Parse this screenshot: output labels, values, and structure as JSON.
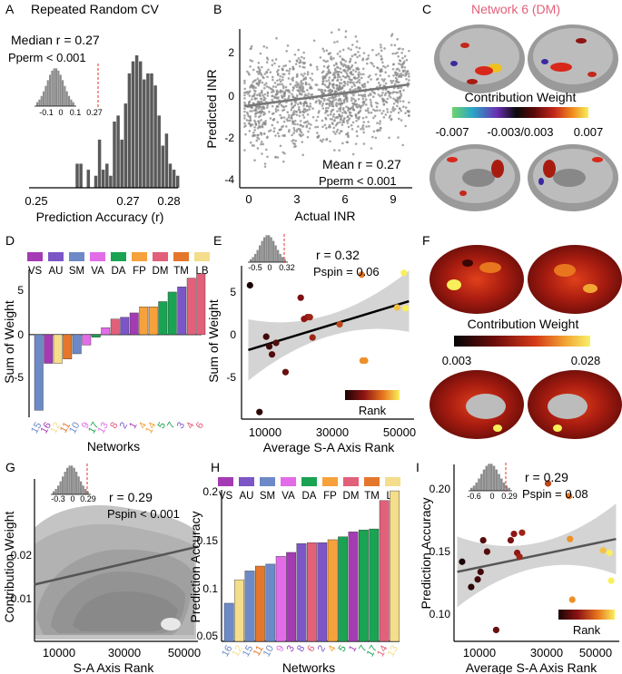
{
  "panels": {
    "A": {
      "letter": "A",
      "title": "Repeated Random CV",
      "median_label": "Median r = 0.27",
      "pperm_label": "Pperm < 0.001",
      "xlabel": "Prediction Accuracy (r)",
      "xticks": [
        "0.25",
        "0.27",
        "0.28"
      ],
      "inset_xticks": [
        "-0.1",
        "0",
        "0.1",
        "0.27"
      ]
    },
    "B": {
      "letter": "B",
      "xlabel": "Actual INR",
      "ylabel": "Predicted INR",
      "xticks": [
        "0",
        "3",
        "6",
        "9"
      ],
      "yticks": [
        "2",
        "0",
        "-2",
        "-4"
      ],
      "mean_label": "Mean r = 0.27",
      "pperm_label": "Pperm < 0.001"
    },
    "C": {
      "letter": "C",
      "title": "Network 6 (DM)",
      "cbar_title": "Contribution Weight",
      "cbar_ticks": [
        "-0.007",
        "-0.003/0.003",
        "0.007"
      ]
    },
    "D": {
      "letter": "D",
      "ylabel": "Sum of Weight",
      "xlabel": "Networks",
      "yticks": [
        "5",
        "0",
        "-5"
      ],
      "legend": [
        "VS",
        "AU",
        "SM",
        "VA",
        "DA",
        "FP",
        "DM",
        "TM",
        "LB"
      ]
    },
    "E": {
      "letter": "E",
      "ylabel": "Sum of Weight",
      "xlabel": "Average S-A Axis Rank",
      "yticks": [
        "5",
        "0",
        "-5"
      ],
      "xticks": [
        "10000",
        "30000",
        "50000"
      ],
      "r_label": "r = 0.32",
      "p_label": "Pspin = 0.06",
      "inset_xticks": [
        "-0.5",
        "0",
        "0.32"
      ],
      "rank_label": "Rank"
    },
    "F": {
      "letter": "F",
      "cbar_title": "Contribution Weight",
      "cbar_ticks": [
        "0.003",
        "0.028"
      ]
    },
    "G": {
      "letter": "G",
      "ylabel": "Contribution Weight",
      "xlabel": "S-A Axis Rank",
      "yticks": [
        "0.02",
        "0.01"
      ],
      "xticks": [
        "10000",
        "30000",
        "50000"
      ],
      "r_label": "r = 0.29",
      "p_label": "Pspin < 0.001",
      "inset_xticks": [
        "-0.3",
        "0",
        "0.29"
      ]
    },
    "H": {
      "letter": "H",
      "ylabel": "Prediction Accuracy",
      "xlabel": "Networks",
      "yticks": [
        "0.2",
        "0.15",
        "0.1",
        "0.05"
      ],
      "legend": [
        "VS",
        "AU",
        "SM",
        "VA",
        "DA",
        "FP",
        "DM",
        "TM",
        "LB"
      ]
    },
    "I": {
      "letter": "I",
      "ylabel": "Prediction Accuracy",
      "xlabel": "Average S-A Axis Rank",
      "yticks": [
        "0.20",
        "0.15",
        "0.10"
      ],
      "xticks": [
        "10000",
        "30000",
        "50000"
      ],
      "r_label": "r = 0.29",
      "p_label": "Pspin = 0.08",
      "inset_xticks": [
        "-0.6",
        "0",
        "0.29"
      ],
      "rank_label": "Rank"
    }
  },
  "network_colors": {
    "VS": "#a43bb3",
    "AU": "#7c56c6",
    "SM": "#6d8ac7",
    "VA": "#e26ce8",
    "DA": "#1aa352",
    "FP": "#f6a13b",
    "DM": "#e2607a",
    "TM": "#e4772c",
    "LB": "#f4dd8b"
  },
  "chart_data": [
    {
      "panel": "A",
      "type": "bar",
      "title": "Repeated Random CV",
      "xlabel": "Prediction Accuracy (r)",
      "xlim": [
        0.245,
        0.285
      ],
      "bin_start": 0.2575,
      "bin_width": 0.001,
      "values": [
        4,
        4,
        0,
        3,
        0,
        2,
        8,
        3,
        4,
        2,
        11,
        12,
        8,
        14,
        19,
        21,
        22,
        21,
        18,
        19,
        19,
        17,
        12,
        7,
        9,
        4,
        3,
        2
      ],
      "annotations": [
        "Median r = 0.27",
        "Pperm < 0.001"
      ]
    },
    {
      "panel": "B",
      "type": "scatter",
      "xlabel": "Actual INR",
      "ylabel": "Predicted INR",
      "xlim": [
        -0.3,
        10.2
      ],
      "ylim": [
        -4.3,
        3.0
      ],
      "fit_line": {
        "x": [
          0,
          10
        ],
        "y": [
          -0.55,
          0.45
        ]
      },
      "annotations": [
        "Mean r = 0.27",
        "Pperm < 0.001"
      ]
    },
    {
      "panel": "D",
      "type": "bar",
      "xlabel": "Networks",
      "ylabel": "Sum of Weight",
      "ylim": [
        -9.5,
        7.5
      ],
      "categories": [
        "15",
        "16",
        "12",
        "11",
        "10",
        "9",
        "17",
        "13",
        "8",
        "2",
        "1",
        "4",
        "14",
        "5",
        "7",
        "3",
        "4",
        "6"
      ],
      "networks": [
        "SM",
        "VS",
        "LB",
        "TM",
        "SM",
        "VA",
        "DA",
        "VA",
        "DM",
        "AU",
        "VS",
        "FP",
        "FP",
        "DA",
        "DA",
        "AU",
        "DM",
        "DM"
      ],
      "values": [
        -8.7,
        -3.3,
        -3.3,
        -2.8,
        -2.2,
        -1.2,
        -0.3,
        0.8,
        1.8,
        2.0,
        2.5,
        3.2,
        3.2,
        3.8,
        4.9,
        5.5,
        6.5,
        7.0
      ]
    },
    {
      "panel": "E",
      "type": "scatter",
      "xlabel": "Average S-A Axis Rank",
      "ylabel": "Sum of Weight",
      "xlim": [
        3000,
        54000
      ],
      "ylim": [
        -9.5,
        7.8
      ],
      "x": [
        5500,
        8300,
        10300,
        11200,
        12000,
        13200,
        16000,
        20500,
        21500,
        22500,
        23200,
        24000,
        32000,
        38500,
        38800,
        39500,
        49000,
        51000,
        51500
      ],
      "y": [
        5.6,
        -8.7,
        -0.2,
        -1.3,
        -2.2,
        -0.9,
        -4.2,
        4.2,
        1.8,
        2.0,
        2.0,
        -0.3,
        1.2,
        6.8,
        -2.9,
        -2.9,
        3.1,
        7.0,
        3.0
      ],
      "rank": [
        1,
        2,
        3,
        3,
        4,
        4,
        5,
        6,
        7,
        7,
        8,
        8,
        10,
        13,
        14,
        14,
        16,
        18,
        18
      ],
      "fit_line": {
        "x": [
          5000,
          52500
        ],
        "y": [
          -1.7,
          3.8
        ]
      },
      "annotations": [
        "r = 0.32",
        "Pspin = 0.06"
      ]
    },
    {
      "panel": "G",
      "type": "heatmap",
      "xlabel": "S-A Axis Rank",
      "ylabel": "Contribution Weight",
      "xlim": [
        2000,
        55000
      ],
      "ylim": [
        -0.001,
        0.029
      ],
      "fit_line": {
        "x": [
          2000,
          55000
        ],
        "y": [
          0.0095,
          0.0165
        ]
      },
      "annotations": [
        "r = 0.29",
        "Pspin < 0.001"
      ]
    },
    {
      "panel": "H",
      "type": "bar",
      "xlabel": "Networks",
      "ylabel": "Prediction Accuracy",
      "ylim": [
        0.045,
        0.2
      ],
      "categories": [
        "16",
        "12",
        "15",
        "11",
        "10",
        "9",
        "3",
        "8",
        "6",
        "2",
        "4",
        "5",
        "1",
        "7",
        "17",
        "14",
        "13"
      ],
      "networks": [
        "SM",
        "LB",
        "SM",
        "TM",
        "SM",
        "VA",
        "VS",
        "AU",
        "DM",
        "AU",
        "FP",
        "DA",
        "VS",
        "DA",
        "DA",
        "DM",
        "LB"
      ],
      "values": [
        0.084,
        0.108,
        0.117,
        0.122,
        0.124,
        0.132,
        0.136,
        0.145,
        0.146,
        0.146,
        0.149,
        0.152,
        0.157,
        0.159,
        0.16,
        0.189,
        0.199
      ]
    },
    {
      "panel": "I",
      "type": "scatter",
      "xlabel": "Average S-A Axis Rank",
      "ylabel": "Prediction Accuracy",
      "xlim": [
        3000,
        54000
      ],
      "ylim": [
        0.075,
        0.215
      ],
      "x": [
        5500,
        8300,
        10300,
        11200,
        12000,
        13200,
        16000,
        20500,
        21500,
        22500,
        23200,
        24000,
        32000,
        38500,
        38800,
        39500,
        49000,
        51000,
        51500
      ],
      "y": [
        0.138,
        0.118,
        0.124,
        0.13,
        0.155,
        0.146,
        0.084,
        0.155,
        0.16,
        0.145,
        0.142,
        0.161,
        0.2,
        0.19,
        0.156,
        0.108,
        0.147,
        0.145,
        0.123
      ],
      "rank": [
        1,
        2,
        3,
        3,
        4,
        4,
        5,
        6,
        7,
        7,
        8,
        8,
        10,
        13,
        14,
        14,
        16,
        18,
        18
      ],
      "fit_line": {
        "x": [
          4000,
          53000
        ],
        "y": [
          0.13,
          0.156
        ]
      },
      "annotations": [
        "r = 0.29",
        "Pspin = 0.08"
      ]
    }
  ]
}
